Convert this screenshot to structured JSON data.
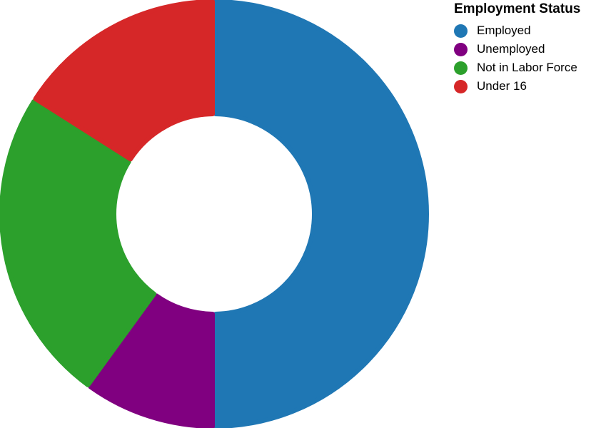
{
  "chart_data": {
    "type": "pie",
    "variant": "donut",
    "title": "",
    "legend": {
      "title": "Employment Status",
      "placement": "top-right"
    },
    "categories": [
      "Employed",
      "Unemployed",
      "Not in Labor Force",
      "Under 16"
    ],
    "values": [
      50,
      10,
      24,
      16
    ],
    "colors": [
      "#1f77b4",
      "#800080",
      "#2ca02c",
      "#d62728"
    ]
  }
}
